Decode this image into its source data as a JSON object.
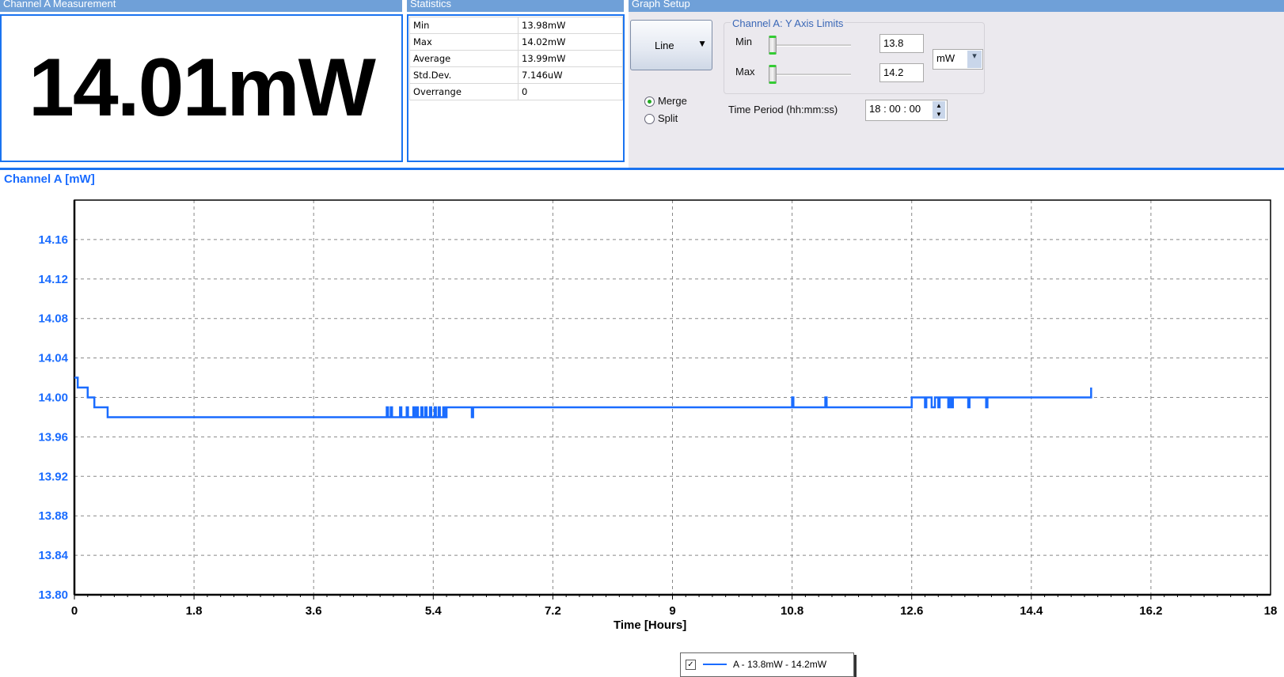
{
  "measurement": {
    "header": "Channel A Measurement",
    "value": "14.01mW"
  },
  "statistics": {
    "header": "Statistics",
    "rows": [
      [
        "Min",
        "13.98mW"
      ],
      [
        "Max",
        "14.02mW"
      ],
      [
        "Average",
        "13.99mW"
      ],
      [
        "Std.Dev.",
        "7.146uW"
      ],
      [
        "Overrange",
        "0"
      ]
    ]
  },
  "graph_setup": {
    "header": "Graph Setup",
    "graph_type": "Line",
    "y_limits_title": "Channel A: Y Axis Limits",
    "min_label": "Min",
    "min_value": "13.8",
    "max_label": "Max",
    "max_value": "14.2",
    "unit": "mW",
    "merge_label": "Merge",
    "split_label": "Split",
    "selected_mode": "Merge",
    "time_period_label": "Time Period (hh:mm:ss)",
    "time_period": "18 : 00 : 00"
  },
  "chart_data": {
    "type": "line",
    "title": "Channel A [mW]",
    "xlabel": "Time [Hours]",
    "ylabel": "",
    "xlim": [
      0,
      18
    ],
    "ylim": [
      13.8,
      14.2
    ],
    "xticks": [
      "0",
      "1.8",
      "3.6",
      "5.4",
      "7.2",
      "9",
      "10.8",
      "12.6",
      "14.4",
      "16.2",
      "18"
    ],
    "yticks": [
      "13.80",
      "13.84",
      "13.88",
      "13.92",
      "13.96",
      "14.00",
      "14.04",
      "14.08",
      "14.12",
      "14.16"
    ],
    "grid": true,
    "color": "#1a6cff",
    "series": [
      {
        "name": "A - 13.8mW - 14.2mW",
        "step": true,
        "points": [
          [
            0,
            14.02
          ],
          [
            0.05,
            14.01
          ],
          [
            0.2,
            14.0
          ],
          [
            0.3,
            13.99
          ],
          [
            0.5,
            13.98
          ],
          [
            4.7,
            13.99
          ],
          [
            4.72,
            13.98
          ],
          [
            4.76,
            13.99
          ],
          [
            4.78,
            13.98
          ],
          [
            4.9,
            13.99
          ],
          [
            4.92,
            13.98
          ],
          [
            5.0,
            13.99
          ],
          [
            5.02,
            13.98
          ],
          [
            5.1,
            13.99
          ],
          [
            5.12,
            13.98
          ],
          [
            5.15,
            13.99
          ],
          [
            5.17,
            13.98
          ],
          [
            5.22,
            13.99
          ],
          [
            5.24,
            13.98
          ],
          [
            5.28,
            13.99
          ],
          [
            5.3,
            13.98
          ],
          [
            5.35,
            13.99
          ],
          [
            5.37,
            13.98
          ],
          [
            5.42,
            13.99
          ],
          [
            5.44,
            13.98
          ],
          [
            5.48,
            13.99
          ],
          [
            5.5,
            13.98
          ],
          [
            5.55,
            13.99
          ],
          [
            5.57,
            13.98
          ],
          [
            5.6,
            13.99
          ],
          [
            5.98,
            13.98
          ],
          [
            6.0,
            13.99
          ],
          [
            10.8,
            14.0
          ],
          [
            10.82,
            13.99
          ],
          [
            11.3,
            14.0
          ],
          [
            11.32,
            13.99
          ],
          [
            12.6,
            14.0
          ],
          [
            12.8,
            13.99
          ],
          [
            12.82,
            14.0
          ],
          [
            12.9,
            13.99
          ],
          [
            12.95,
            14.0
          ],
          [
            13.0,
            13.99
          ],
          [
            13.02,
            14.0
          ],
          [
            13.15,
            13.99
          ],
          [
            13.17,
            14.0
          ],
          [
            13.2,
            13.99
          ],
          [
            13.22,
            14.0
          ],
          [
            13.45,
            13.99
          ],
          [
            13.47,
            14.0
          ],
          [
            13.72,
            13.99
          ],
          [
            13.74,
            14.0
          ],
          [
            15.3,
            14.01
          ]
        ]
      }
    ],
    "legend": {
      "position": "bottom-center",
      "checked": true
    }
  }
}
